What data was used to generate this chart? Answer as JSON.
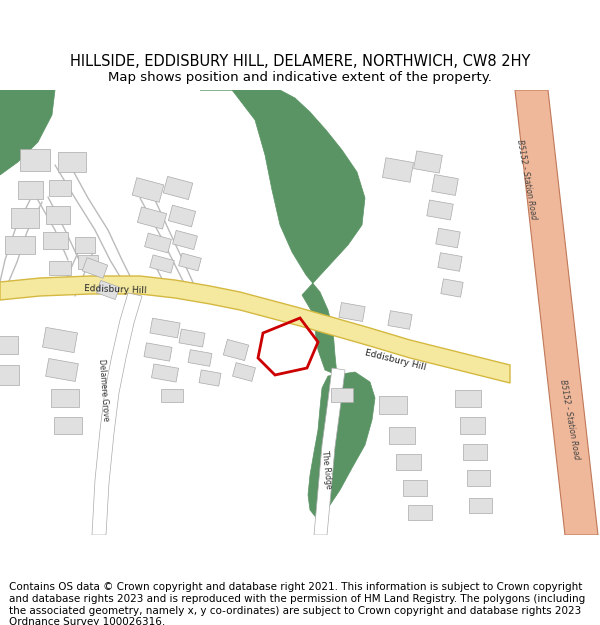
{
  "title": "HILLSIDE, EDDISBURY HILL, DELAMERE, NORTHWICH, CW8 2HY",
  "subtitle": "Map shows position and indicative extent of the property.",
  "footer": "Contains OS data © Crown copyright and database right 2021. This information is subject to Crown copyright and database rights 2023 and is reproduced with the permission of HM Land Registry. The polygons (including the associated geometry, namely x, y co-ordinates) are subject to Crown copyright and database rights 2023 Ordnance Survey 100026316.",
  "bg_color": "#ffffff",
  "map_bg": "#f8f8f8",
  "road_main_color": "#f5e9a0",
  "road_main_edge": "#d4b840",
  "road_b_color": "#f0b89a",
  "road_b_edge": "#c07858",
  "road_minor_color": "#ffffff",
  "road_minor_edge": "#aaaaaa",
  "building_color": "#e0e0e0",
  "building_edge": "#aaaaaa",
  "green_color": "#5a9464",
  "plot_edge": "#cc0000",
  "plot_linewidth": 2.0,
  "title_fontsize": 10.5,
  "subtitle_fontsize": 9.5,
  "footer_fontsize": 7.5
}
